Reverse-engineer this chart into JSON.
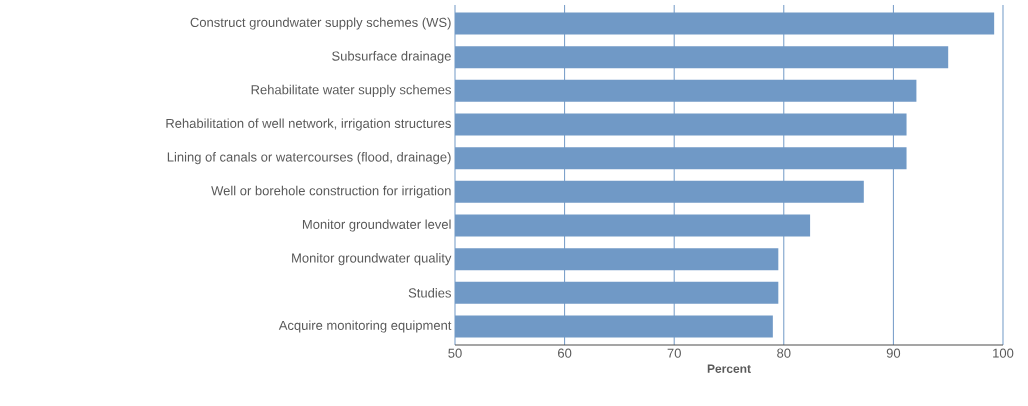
{
  "chart_data": {
    "type": "bar",
    "orientation": "horizontal",
    "xlabel": "Percent",
    "categories": [
      "Construct groundwater supply schemes (WS)",
      "Subsurface drainage",
      "Rehabilitate water supply schemes",
      "Rehabilitation of well network, irrigation structures",
      "Lining of canals or watercourses (flood, drainage)",
      "Well or borehole construction for irrigation",
      "Monitor groundwater level",
      "Monitor groundwater quality",
      "Studies",
      "Acquire monitoring equipment"
    ],
    "values": [
      99.2,
      95.0,
      92.1,
      91.2,
      91.2,
      87.3,
      82.4,
      79.5,
      79.5,
      79.0
    ],
    "color": "#7099c6",
    "xlim": [
      50,
      100
    ],
    "xticks": [
      50,
      60,
      70,
      80,
      90,
      100
    ],
    "grid": "x"
  }
}
